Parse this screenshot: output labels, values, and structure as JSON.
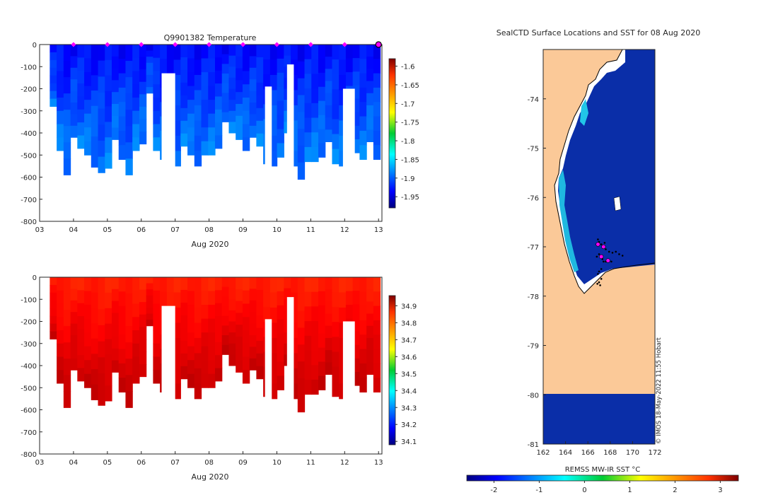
{
  "chart_data": [
    {
      "type": "heatmap",
      "id": "temperature",
      "title": "Q9901382  Temperature",
      "xlabel": "Aug 2020",
      "ylabel": "",
      "x_ticks": [
        3,
        4,
        5,
        6,
        7,
        8,
        9,
        10,
        11,
        12,
        13
      ],
      "x_tick_labels": [
        "03",
        "04",
        "05",
        "06",
        "07",
        "08",
        "09",
        "10",
        "11",
        "12",
        "13"
      ],
      "xlim": [
        3,
        13.1
      ],
      "y_ticks": [
        0,
        -100,
        -200,
        -300,
        -400,
        -500,
        -600,
        -700,
        -800
      ],
      "y_tick_labels": [
        "0",
        "-100",
        "-200",
        "-300",
        "-400",
        "-500",
        "-600",
        "-700",
        "-800"
      ],
      "ylim": [
        -800,
        0
      ],
      "colorbar": {
        "min": -1.98,
        "max": -1.58,
        "ticks": [
          -1.6,
          -1.65,
          -1.7,
          -1.75,
          -1.8,
          -1.85,
          -1.9,
          -1.95
        ],
        "tick_labels": [
          "-1.6",
          "-1.65",
          "-1.7",
          "-1.75",
          "-1.8",
          "-1.85",
          "-1.9",
          "-1.95"
        ]
      },
      "markers_x": [
        4.0,
        5.0,
        6.0,
        7.0,
        8.0,
        9.0,
        10.0,
        11.0,
        12.0
      ],
      "marker_last_x": 13.0,
      "profile_max_depths": [
        280,
        480,
        590,
        420,
        470,
        500,
        555,
        580,
        560,
        430,
        520,
        590,
        480,
        450,
        220,
        480,
        520,
        550,
        550,
        460,
        500,
        550,
        500,
        500,
        470,
        350,
        400,
        430,
        480,
        420,
        460,
        540,
        550,
        510,
        400,
        550,
        610,
        530,
        530,
        510,
        440,
        540,
        550,
        500,
        490,
        520,
        440,
        520
      ],
      "white_gaps": [
        {
          "x0": 6.6,
          "x1": 7.0,
          "depth": 130
        },
        {
          "x0": 9.65,
          "x1": 9.85,
          "depth": 190
        },
        {
          "x0": 10.3,
          "x1": 10.5,
          "depth": 90
        },
        {
          "x0": 11.95,
          "x1": 12.3,
          "depth": 200
        }
      ]
    },
    {
      "type": "heatmap",
      "id": "salinity",
      "title": "",
      "xlabel": "Aug 2020",
      "ylabel": "",
      "x_ticks": [
        3,
        4,
        5,
        6,
        7,
        8,
        9,
        10,
        11,
        12,
        13
      ],
      "x_tick_labels": [
        "03",
        "04",
        "05",
        "06",
        "07",
        "08",
        "09",
        "10",
        "11",
        "12",
        "13"
      ],
      "xlim": [
        3,
        13.1
      ],
      "y_ticks": [
        0,
        -100,
        -200,
        -300,
        -400,
        -500,
        -600,
        -700,
        -800
      ],
      "y_tick_labels": [
        "0",
        "-100",
        "-200",
        "-300",
        "-400",
        "-500",
        "-600",
        "-700",
        "-800"
      ],
      "ylim": [
        -800,
        0
      ],
      "colorbar": {
        "min": 34.08,
        "max": 34.96,
        "ticks": [
          34.1,
          34.2,
          34.3,
          34.4,
          34.5,
          34.6,
          34.7,
          34.8,
          34.9
        ],
        "tick_labels": [
          "34.1",
          "34.2",
          "34.3",
          "34.4",
          "34.5",
          "34.6",
          "34.7",
          "34.8",
          "34.9"
        ]
      }
    },
    {
      "type": "heatmap",
      "id": "sst_map",
      "title": "SealCTD Surface Locations and SST for 08 Aug 2020",
      "x_ticks": [
        162,
        164,
        166,
        168,
        170,
        172
      ],
      "x_tick_labels": [
        "162",
        "164",
        "166",
        "168",
        "170",
        "172"
      ],
      "xlim": [
        162,
        172
      ],
      "y_ticks": [
        -74,
        -75,
        -76,
        -77,
        -78,
        -79,
        -80,
        -81
      ],
      "y_tick_labels": [
        "-74",
        "-75",
        "-76",
        "-77",
        "-78",
        "-79",
        "-80",
        "-81"
      ],
      "ylim": [
        -81,
        -73
      ],
      "land_color": "#fbc998",
      "ocean_color": "#0a2ea8",
      "colorbar": {
        "label": "REMSS MW-IR SST °C",
        "min": -2.6,
        "max": 3.4,
        "ticks": [
          -2,
          -1,
          0,
          1,
          2,
          3
        ],
        "tick_labels": [
          "-2",
          "-1",
          "0",
          "1",
          "2",
          "3"
        ]
      },
      "credit": "© IMOS 18-May-2022 11:55 Hobart"
    }
  ]
}
